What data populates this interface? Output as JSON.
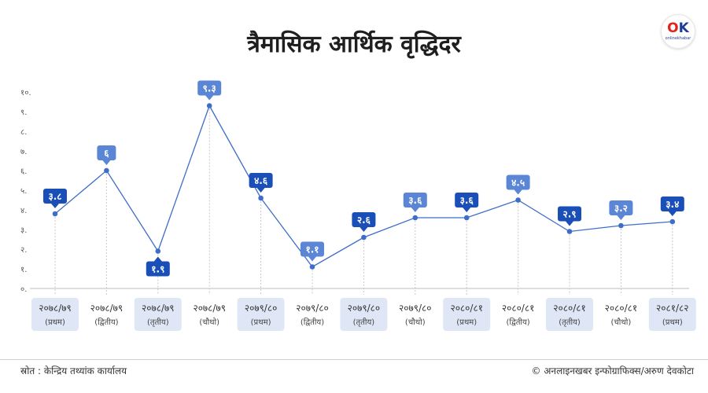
{
  "title": "त्रैमासिक आर्थिक वृद्धिदर",
  "logo": {
    "mark_o": "O",
    "mark_k": "K",
    "sub": "onlinekhabar"
  },
  "source": "स्रोत : केन्द्रिय तथ्यांक कार्यालय",
  "credit": "© अनलाइनखबर इन्फोग्राफिक्स/अरुण देवकोटा",
  "colors": {
    "line": "#3f6ec9",
    "label_dark": "#1a4fb8",
    "label_light": "#5b86d6",
    "category_bg": "#dfe7f6",
    "axis_text": "#555555"
  },
  "chart_data": {
    "type": "line",
    "ylim": [
      0,
      10
    ],
    "y_ticks": [
      "०.",
      "१.",
      "२.",
      "३.",
      "४.",
      "५.",
      "६.",
      "७.",
      "८.",
      "९.",
      "१०."
    ],
    "categories": [
      {
        "year": "२०७८/७९",
        "quarter": "(प्रथम)"
      },
      {
        "year": "२०७८/७९",
        "quarter": "(द्वितीय)"
      },
      {
        "year": "२०७८/७९",
        "quarter": "(तृतीय)"
      },
      {
        "year": "२०७८/७९",
        "quarter": "(चौथो)"
      },
      {
        "year": "२०७९/८०",
        "quarter": "(प्रथम)"
      },
      {
        "year": "२०७९/८०",
        "quarter": "(द्वितीय)"
      },
      {
        "year": "२०७९/८०",
        "quarter": "(तृतीय)"
      },
      {
        "year": "२०७९/८०",
        "quarter": "(चौथो)"
      },
      {
        "year": "२०८०/८१",
        "quarter": "(प्रथम)"
      },
      {
        "year": "२०८०/८१",
        "quarter": "(द्वितीय)"
      },
      {
        "year": "२०८०/८१",
        "quarter": "(तृतीय)"
      },
      {
        "year": "२०८०/८१",
        "quarter": "(चौथो)"
      },
      {
        "year": "२०८१/८२",
        "quarter": "(प्रथम)"
      }
    ],
    "values": [
      3.8,
      6,
      1.9,
      9.3,
      4.6,
      1.1,
      2.6,
      3.6,
      3.6,
      4.5,
      2.9,
      3.2,
      3.4
    ],
    "labels": [
      "३.८",
      "६",
      "१.९",
      "९.३",
      "४.६",
      "१.१",
      "२.६",
      "३.६",
      "३.६",
      "४.५",
      "२.९",
      "३.२",
      "३.४"
    ],
    "label_styles": [
      "dark",
      "light",
      "dark",
      "light",
      "dark",
      "light",
      "dark",
      "light",
      "dark",
      "light",
      "dark",
      "light",
      "dark"
    ],
    "label_positions": [
      "above",
      "above",
      "below",
      "above",
      "above",
      "above",
      "above",
      "above",
      "above",
      "above",
      "above",
      "above",
      "above"
    ],
    "category_shaded": [
      true,
      false,
      true,
      false,
      true,
      false,
      true,
      false,
      true,
      false,
      true,
      false,
      true
    ]
  }
}
